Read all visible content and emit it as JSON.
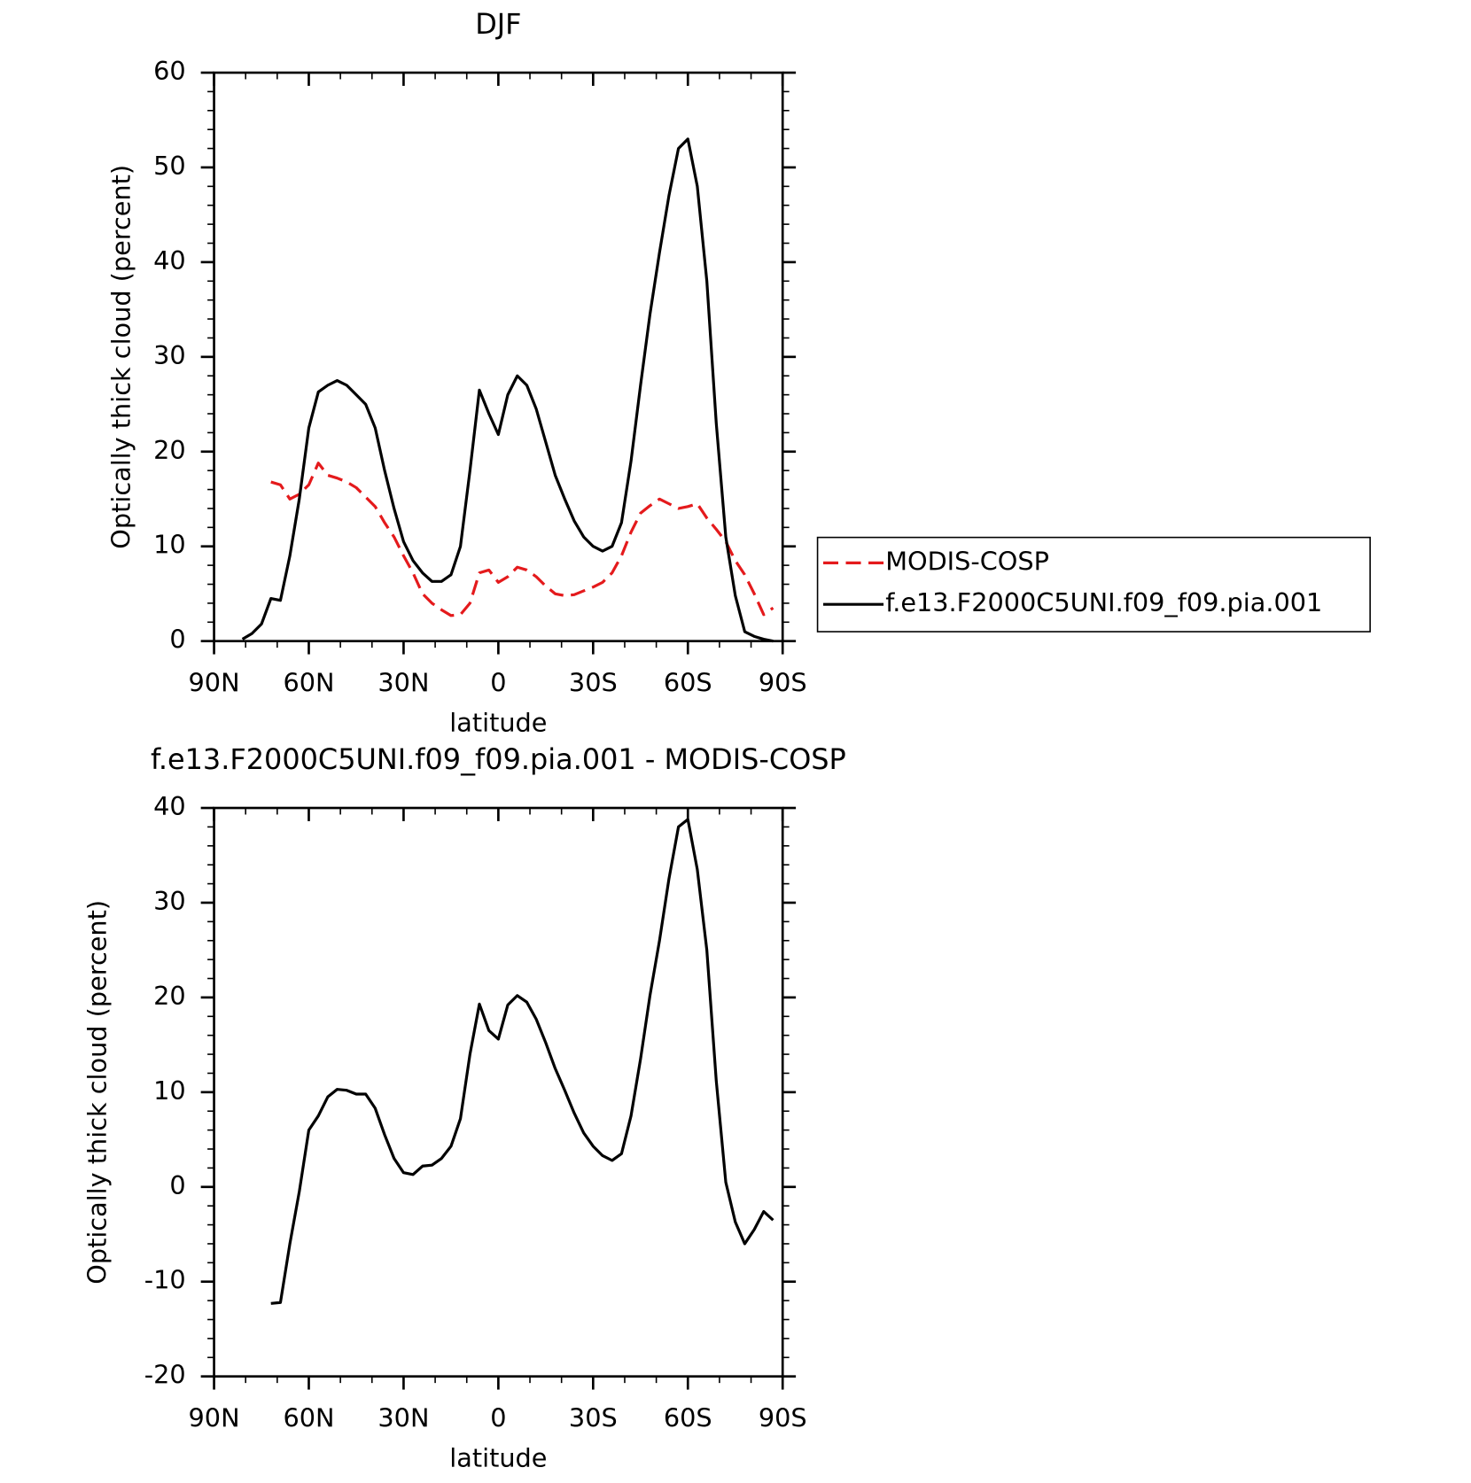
{
  "chart_data": [
    {
      "type": "line",
      "title": "DJF",
      "xlabel": "latitude",
      "ylabel": "Optically thick cloud (percent)",
      "x": [
        81,
        78,
        75,
        72,
        69,
        66,
        63,
        60,
        57,
        54,
        51,
        48,
        45,
        42,
        39,
        36,
        33,
        30,
        27,
        24,
        21,
        18,
        15,
        12,
        9,
        6,
        3,
        0,
        -3,
        -6,
        -9,
        -12,
        -15,
        -18,
        -21,
        -24,
        -27,
        -30,
        -33,
        -36,
        -39,
        -42,
        -45,
        -48,
        -51,
        -54,
        -57,
        -60,
        -63,
        -66,
        -69,
        -72,
        -75,
        -78,
        -81,
        -84,
        -87
      ],
      "xlim": [
        90,
        -90
      ],
      "xticks": [
        {
          "value": 90,
          "label": "90N"
        },
        {
          "value": 60,
          "label": "60N"
        },
        {
          "value": 30,
          "label": "30N"
        },
        0,
        {
          "value": -30,
          "label": "30S"
        },
        {
          "value": -60,
          "label": "60S"
        },
        {
          "value": -90,
          "label": "90S"
        }
      ],
      "ylim": [
        0,
        60
      ],
      "yticks": [
        0,
        10,
        20,
        30,
        40,
        50,
        60
      ],
      "grid": false,
      "legend": "right",
      "series": [
        {
          "name": "MODIS-COSP",
          "color": "#e41a1c",
          "dash": true,
          "values": [
            null,
            null,
            null,
            16.8,
            16.5,
            15,
            15.5,
            16.5,
            18.8,
            17.5,
            17.2,
            16.8,
            16.2,
            15.2,
            14.2,
            12.5,
            11,
            9,
            7.2,
            5,
            4,
            3.3,
            2.7,
            2.8,
            4,
            7.2,
            7.5,
            6.2,
            6.8,
            7.8,
            7.5,
            6.8,
            5.8,
            5,
            4.8,
            4.9,
            5.3,
            5.7,
            6.2,
            7.2,
            9,
            11.5,
            13.5,
            14.3,
            15,
            14.5,
            14,
            14.2,
            14.5,
            13,
            11.8,
            10.5,
            8.5,
            7,
            5,
            2.8,
            3.5
          ]
        },
        {
          "name": "f.e13.F2000C5UNI.f09_f09.pia.001",
          "color": "#000000",
          "dash": false,
          "values": [
            0.2,
            0.8,
            1.8,
            4.5,
            4.3,
            9,
            15,
            22.5,
            26.3,
            27,
            27.5,
            27,
            26,
            25,
            22.5,
            18,
            14,
            10.5,
            8.5,
            7.2,
            6.3,
            6.3,
            7,
            10,
            18,
            26.5,
            24,
            21.8,
            26,
            28,
            27,
            24.5,
            21,
            17.5,
            15,
            12.7,
            11,
            10,
            9.5,
            10,
            12.5,
            19,
            27,
            34.5,
            41,
            47,
            52,
            53,
            48,
            38,
            23,
            11,
            4.8,
            1,
            0.5,
            0.2,
            0
          ]
        }
      ]
    },
    {
      "type": "line",
      "title": "f.e13.F2000C5UNI.f09_f09.pia.001 - MODIS-COSP",
      "xlabel": "latitude",
      "ylabel": "Optically thick cloud (percent)",
      "x": [
        81,
        78,
        75,
        72,
        69,
        66,
        63,
        60,
        57,
        54,
        51,
        48,
        45,
        42,
        39,
        36,
        33,
        30,
        27,
        24,
        21,
        18,
        15,
        12,
        9,
        6,
        3,
        0,
        -3,
        -6,
        -9,
        -12,
        -15,
        -18,
        -21,
        -24,
        -27,
        -30,
        -33,
        -36,
        -39,
        -42,
        -45,
        -48,
        -51,
        -54,
        -57,
        -60,
        -63,
        -66,
        -69,
        -72,
        -75,
        -78,
        -81,
        -84,
        -87
      ],
      "xlim": [
        90,
        -90
      ],
      "xticks": [
        {
          "value": 90,
          "label": "90N"
        },
        {
          "value": 60,
          "label": "60N"
        },
        {
          "value": 30,
          "label": "30N"
        },
        0,
        {
          "value": -30,
          "label": "30S"
        },
        {
          "value": -60,
          "label": "60S"
        },
        {
          "value": -90,
          "label": "90S"
        }
      ],
      "ylim": [
        -20,
        40
      ],
      "yticks": [
        -20,
        -10,
        0,
        10,
        20,
        30,
        40
      ],
      "grid": false,
      "series": [
        {
          "color": "#000000",
          "dash": false,
          "values": [
            null,
            null,
            null,
            -12.3,
            -12.2,
            -6,
            -0.5,
            6,
            7.5,
            9.5,
            10.3,
            10.2,
            9.8,
            9.8,
            8.3,
            5.5,
            3,
            1.5,
            1.3,
            2.2,
            2.3,
            3,
            4.3,
            7.2,
            14,
            19.3,
            16.5,
            15.6,
            19.2,
            20.2,
            19.5,
            17.7,
            15.2,
            12.5,
            10.2,
            7.8,
            5.7,
            4.3,
            3.3,
            2.8,
            3.5,
            7.5,
            13.5,
            20.2,
            26,
            32.5,
            38,
            38.8,
            33.5,
            25,
            11.2,
            0.5,
            -3.7,
            -6,
            -4.5,
            -2.6,
            -3.5
          ]
        }
      ]
    }
  ]
}
